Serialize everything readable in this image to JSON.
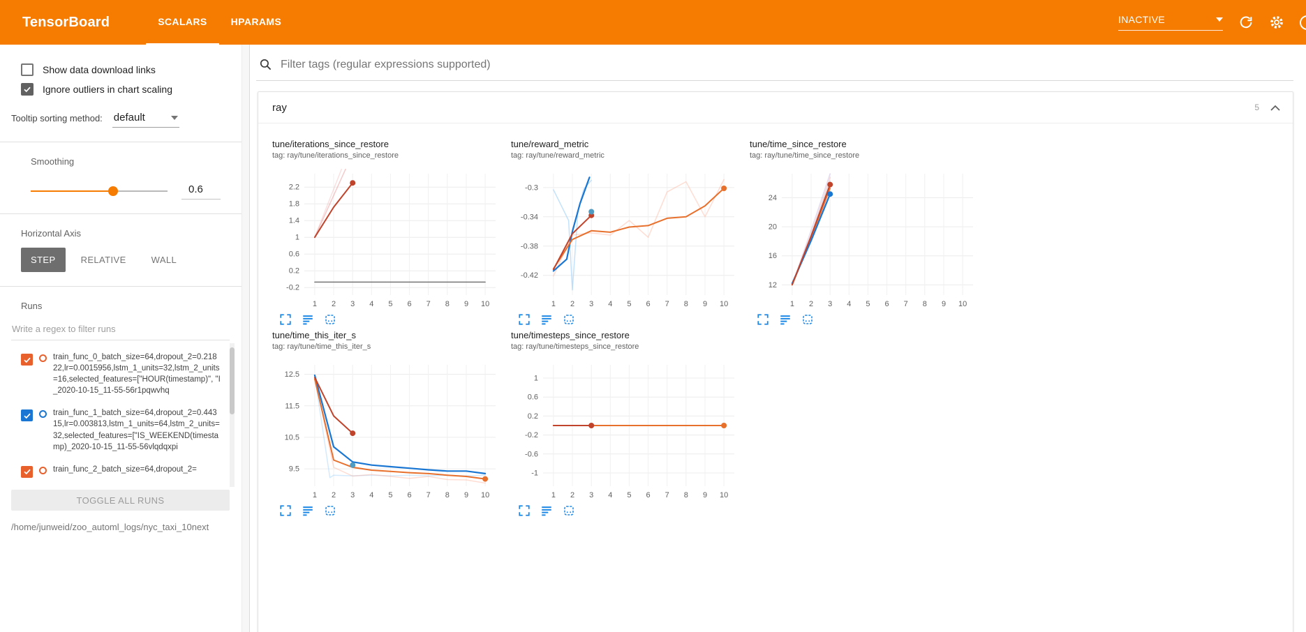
{
  "header": {
    "title": "TensorBoard",
    "tabs": [
      {
        "label": "SCALARS",
        "active": true
      },
      {
        "label": "HPARAMS",
        "active": false
      }
    ],
    "status": "INACTIVE",
    "icons": [
      "chevron-down-icon",
      "refresh-icon",
      "settings-icon",
      "help-icon"
    ]
  },
  "sidebar": {
    "checkboxes": [
      {
        "label": "Show data download links",
        "checked": false
      },
      {
        "label": "Ignore outliers in chart scaling",
        "checked": true
      }
    ],
    "tooltip_sorting": {
      "label": "Tooltip sorting method:",
      "value": "default"
    },
    "smoothing": {
      "label": "Smoothing",
      "value": "0.6"
    },
    "horizontal_axis": {
      "label": "Horizontal Axis",
      "options": [
        "STEP",
        "RELATIVE",
        "WALL"
      ],
      "selected": "STEP"
    },
    "runs": {
      "label": "Runs",
      "filter_placeholder": "Write a regex to filter runs",
      "items": [
        {
          "label": "train_func_0_batch_size=64,dropout_2=0.21822,lr=0.0015956,lstm_1_units=32,lstm_2_units=16,selected_features=[\"HOUR(timestamp)\", \"I_2020-10-15_11-55-56r1pqwvhq",
          "checked": true,
          "color": "#e8602c"
        },
        {
          "label": "train_func_1_batch_size=64,dropout_2=0.44315,lr=0.003813,lstm_1_units=64,lstm_2_units=32,selected_features=[\"IS_WEEKEND(timestamp)_2020-10-15_11-55-56vlqdqxpi",
          "checked": true,
          "color": "#1976d2"
        },
        {
          "label": "train_func_2_batch_size=64,dropout_2=",
          "checked": true,
          "color": "#e8602c"
        }
      ],
      "toggle_all_label": "TOGGLE ALL RUNS",
      "log_path": "/home/junweid/zoo_automl_logs/nyc_taxi_10next"
    }
  },
  "main": {
    "filter_placeholder": "Filter tags (regular expressions supported)",
    "group": {
      "title": "ray",
      "count": "5"
    }
  },
  "colors": {
    "accent": "#f57c00",
    "chart_blue": "#1976d2",
    "chart_red": "#c0432b",
    "chart_orange": "#e8702d",
    "icon_blue": "#1e88e5"
  },
  "chart_data": [
    {
      "type": "line",
      "title": "tune/iterations_since_restore",
      "tag": "tag: ray/tune/iterations_since_restore",
      "xlim": [
        0.45,
        10.55
      ],
      "ylim": [
        -0.38,
        2.52
      ],
      "xticks": [
        1,
        2,
        3,
        4,
        5,
        6,
        7,
        8,
        9,
        10
      ],
      "yticks": [
        -0.2,
        0.2,
        0.6,
        1,
        1.4,
        1.8,
        2.2
      ],
      "series": [
        {
          "color": "#e57373",
          "opacity": 0.38,
          "width": 1.5,
          "points": [
            [
              1,
              1
            ],
            [
              2,
              2
            ],
            [
              3,
              3
            ]
          ]
        },
        {
          "color": "#ef9a9a",
          "opacity": 0.3,
          "width": 1.5,
          "points": [
            [
              1,
              1
            ],
            [
              2,
              2.15
            ],
            [
              3,
              3.3
            ]
          ]
        },
        {
          "color": "#757575",
          "opacity": 1,
          "width": 1.5,
          "points": [
            [
              1,
              -0.07
            ],
            [
              10,
              -0.07
            ]
          ]
        },
        {
          "color": "#c0432b",
          "opacity": 1,
          "width": 2,
          "points": [
            [
              1,
              1
            ],
            [
              2,
              1.72
            ],
            [
              3,
              2.3
            ]
          ],
          "end_dot": true
        }
      ]
    },
    {
      "type": "line",
      "title": "tune/reward_metric",
      "tag": "tag: ray/tune/reward_metric",
      "xlim": [
        0.45,
        10.55
      ],
      "ylim": [
        -0.447,
        -0.281
      ],
      "xticks": [
        1,
        2,
        3,
        4,
        5,
        6,
        7,
        8,
        9,
        10
      ],
      "yticks": [
        -0.42,
        -0.38,
        -0.34,
        -0.3
      ],
      "series": [
        {
          "color": "#90caf9",
          "opacity": 0.55,
          "width": 1.5,
          "points": [
            [
              1,
              -0.303
            ],
            [
              1.8,
              -0.345
            ],
            [
              2,
              -0.44
            ],
            [
              2.3,
              -0.33
            ],
            [
              2.6,
              -0.302
            ],
            [
              3,
              -0.29
            ]
          ]
        },
        {
          "color": "#ffab91",
          "opacity": 0.4,
          "width": 1.5,
          "points": [
            [
              1,
              -0.421
            ],
            [
              2,
              -0.365
            ],
            [
              3,
              -0.362
            ],
            [
              4,
              -0.365
            ],
            [
              5,
              -0.345
            ],
            [
              6,
              -0.368
            ],
            [
              7,
              -0.306
            ],
            [
              8,
              -0.292
            ],
            [
              9,
              -0.34
            ],
            [
              10,
              -0.289
            ]
          ]
        },
        {
          "color": "#1976d2",
          "opacity": 1,
          "width": 2.2,
          "points": [
            [
              1,
              -0.414
            ],
            [
              1.7,
              -0.398
            ],
            [
              2,
              -0.36
            ],
            [
              2.4,
              -0.322
            ],
            [
              2.9,
              -0.286
            ]
          ]
        },
        {
          "color": "#e8702d",
          "opacity": 1,
          "width": 2,
          "points": [
            [
              1,
              -0.411
            ],
            [
              2,
              -0.371
            ],
            [
              3,
              -0.359
            ],
            [
              4,
              -0.361
            ],
            [
              5,
              -0.354
            ],
            [
              6,
              -0.352
            ],
            [
              7,
              -0.342
            ],
            [
              8,
              -0.34
            ],
            [
              9,
              -0.325
            ],
            [
              10,
              -0.301
            ]
          ],
          "end_dot": true
        },
        {
          "color": "#c0432b",
          "opacity": 1,
          "width": 2,
          "points": [
            [
              1,
              -0.412
            ],
            [
              2,
              -0.363
            ],
            [
              3,
              -0.338
            ]
          ],
          "end_dot": true
        },
        {
          "color": "#4f9bc1",
          "opacity": 1,
          "width": 0,
          "points": [
            [
              3,
              -0.333
            ]
          ],
          "end_dot": true
        }
      ]
    },
    {
      "type": "line",
      "title": "tune/time_since_restore",
      "tag": "tag: ray/tune/time_since_restore",
      "xlim": [
        0.45,
        10.55
      ],
      "ylim": [
        10.6,
        27.3
      ],
      "xticks": [
        1,
        2,
        3,
        4,
        5,
        6,
        7,
        8,
        9,
        10
      ],
      "yticks": [
        12,
        16,
        20,
        24
      ],
      "series": [
        {
          "color": "#b39ddb",
          "opacity": 0.35,
          "width": 1.5,
          "points": [
            [
              1,
              12
            ],
            [
              2,
              19.5
            ],
            [
              3,
              27.3
            ]
          ]
        },
        {
          "color": "#ef9a9a",
          "opacity": 0.35,
          "width": 1.5,
          "points": [
            [
              1,
              12
            ],
            [
              2,
              19
            ],
            [
              3,
              26.8
            ]
          ]
        },
        {
          "color": "#b0bec5",
          "opacity": 0.45,
          "width": 1.5,
          "points": [
            [
              1,
              12
            ],
            [
              2,
              18.8
            ],
            [
              3,
              26.3
            ]
          ]
        },
        {
          "color": "#e8702d",
          "opacity": 0.9,
          "width": 2,
          "points": [
            [
              1,
              12
            ],
            [
              2,
              18.4
            ],
            [
              3,
              25.3
            ]
          ]
        },
        {
          "color": "#1976d2",
          "opacity": 1,
          "width": 2.2,
          "points": [
            [
              1,
              12.2
            ],
            [
              2,
              18.1
            ],
            [
              3,
              24.5
            ]
          ],
          "end_dot": true
        },
        {
          "color": "#c0432b",
          "opacity": 1,
          "width": 2,
          "points": [
            [
              1,
              12.05
            ],
            [
              2,
              18.7
            ],
            [
              3,
              25.8
            ]
          ],
          "end_dot": true
        }
      ]
    },
    {
      "type": "line",
      "title": "tune/time_this_iter_s",
      "tag": "tag: ray/tune/time_this_iter_s",
      "xlim": [
        0.45,
        10.55
      ],
      "ylim": [
        8.95,
        12.8
      ],
      "xticks": [
        1,
        2,
        3,
        4,
        5,
        6,
        7,
        8,
        9,
        10
      ],
      "yticks": [
        9.5,
        10.5,
        11.5,
        12.5
      ],
      "series": [
        {
          "color": "#90caf9",
          "opacity": 0.4,
          "width": 1.5,
          "points": [
            [
              1,
              12.45
            ],
            [
              1.8,
              9.22
            ],
            [
              2,
              9.3
            ],
            [
              3,
              9.28
            ],
            [
              4,
              9.3
            ],
            [
              5,
              9.28
            ],
            [
              6,
              9.3
            ],
            [
              7,
              9.28
            ],
            [
              8,
              9.3
            ],
            [
              9,
              9.28
            ],
            [
              10,
              9.3
            ]
          ]
        },
        {
          "color": "#ffab91",
          "opacity": 0.4,
          "width": 1.5,
          "points": [
            [
              1,
              12.4
            ],
            [
              2,
              9.55
            ],
            [
              3,
              9.27
            ],
            [
              4,
              9.32
            ],
            [
              5,
              9.26
            ],
            [
              6,
              9.2
            ],
            [
              7,
              9.26
            ],
            [
              8,
              9.16
            ],
            [
              9,
              9.15
            ],
            [
              10,
              9.05
            ]
          ]
        },
        {
          "color": "#1976d2",
          "opacity": 1,
          "width": 2.2,
          "points": [
            [
              1,
              12.47
            ],
            [
              2,
              10.2
            ],
            [
              3,
              9.72
            ],
            [
              4,
              9.62
            ],
            [
              5,
              9.57
            ],
            [
              6,
              9.52
            ],
            [
              7,
              9.47
            ],
            [
              8,
              9.43
            ],
            [
              9,
              9.43
            ],
            [
              10,
              9.35
            ]
          ]
        },
        {
          "color": "#e8702d",
          "opacity": 1,
          "width": 2,
          "points": [
            [
              1,
              12.35
            ],
            [
              2,
              9.78
            ],
            [
              3,
              9.55
            ],
            [
              4,
              9.46
            ],
            [
              5,
              9.42
            ],
            [
              6,
              9.38
            ],
            [
              7,
              9.35
            ],
            [
              8,
              9.3
            ],
            [
              9,
              9.26
            ],
            [
              10,
              9.18
            ]
          ],
          "end_dot": true
        },
        {
          "color": "#c0432b",
          "opacity": 1,
          "width": 2,
          "points": [
            [
              1,
              12.4
            ],
            [
              2,
              11.18
            ],
            [
              3,
              10.63
            ]
          ],
          "end_dot": true
        },
        {
          "color": "#4f9bc1",
          "opacity": 1,
          "width": 0,
          "points": [
            [
              3,
              9.62
            ]
          ],
          "end_dot": true
        }
      ]
    },
    {
      "type": "line",
      "title": "tune/timesteps_since_restore",
      "tag": "tag: ray/tune/timesteps_since_restore",
      "xlim": [
        0.45,
        10.55
      ],
      "ylim": [
        -1.28,
        1.28
      ],
      "xticks": [
        1,
        2,
        3,
        4,
        5,
        6,
        7,
        8,
        9,
        10
      ],
      "yticks": [
        1,
        0.6,
        0.2,
        -0.2,
        -0.6,
        -1
      ],
      "series": [
        {
          "color": "#9e9e9e",
          "opacity": 0.8,
          "width": 1.2,
          "points": [
            [
              1,
              0
            ],
            [
              10,
              0
            ]
          ]
        },
        {
          "color": "#e8702d",
          "opacity": 1,
          "width": 2,
          "points": [
            [
              1,
              0
            ],
            [
              10,
              0
            ]
          ],
          "end_dot": true
        },
        {
          "color": "#c0432b",
          "opacity": 1,
          "width": 2,
          "points": [
            [
              1,
              0
            ],
            [
              3,
              0
            ]
          ],
          "end_dot": true
        }
      ]
    }
  ]
}
